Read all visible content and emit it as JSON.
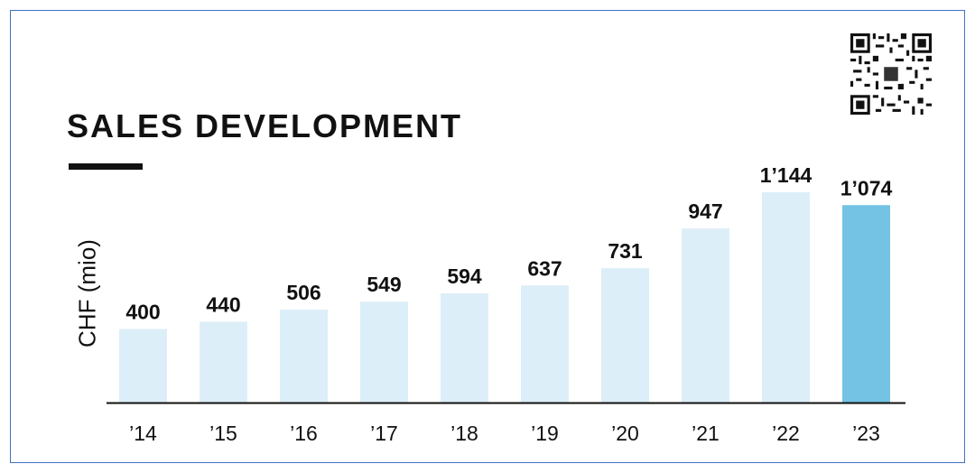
{
  "header": {
    "title": "SALES DEVELOPMENT"
  },
  "colors": {
    "bar_default": "#dceef8",
    "bar_highlight": "#74c3e5",
    "axis": "#111111",
    "text": "#111111",
    "frame_border": "#4472c4"
  },
  "chart_data": {
    "type": "bar",
    "title": "SALES DEVELOPMENT",
    "xlabel": "",
    "ylabel": "CHF (mio)",
    "categories": [
      "’14",
      "’15",
      "’16",
      "’17",
      "’18",
      "’19",
      "’20",
      "’21",
      "’22",
      "’23"
    ],
    "values": [
      400,
      440,
      506,
      549,
      594,
      637,
      731,
      947,
      1144,
      1074
    ],
    "value_labels": [
      "400",
      "440",
      "506",
      "549",
      "594",
      "637",
      "731",
      "947",
      "1’144",
      "1’074"
    ],
    "highlight_index": 9,
    "ylim": [
      0,
      1144
    ],
    "grid": false,
    "legend": "none"
  },
  "qr_code": {
    "icon": "qr-code-icon"
  }
}
